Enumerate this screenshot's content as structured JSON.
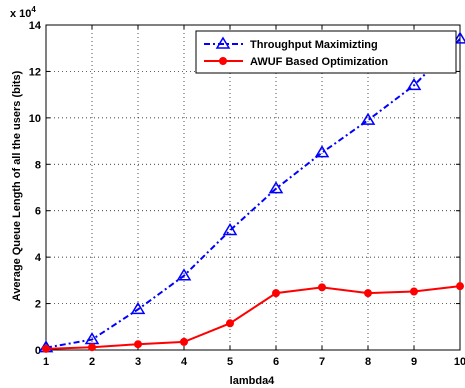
{
  "chart_data": {
    "type": "line",
    "title": "",
    "xlabel": "lambda4",
    "ylabel": "Average Queue Length of all the users (bits)",
    "y_exponent": "x 10",
    "y_exponent_power": "4",
    "x": [
      1,
      2,
      3,
      4,
      5,
      6,
      7,
      8,
      9,
      10
    ],
    "xlim": [
      1,
      10
    ],
    "ylim": [
      0,
      14
    ],
    "x_ticks": [
      "1",
      "2",
      "3",
      "4",
      "5",
      "6",
      "7",
      "8",
      "9",
      "10"
    ],
    "y_ticks": [
      "0",
      "2",
      "4",
      "6",
      "8",
      "10",
      "12",
      "14"
    ],
    "grid": true,
    "legend_position": "top-right",
    "series": [
      {
        "name": "Throughput Maximizting",
        "color": "#0000ff",
        "line_style": "dash-dot",
        "marker": "triangle",
        "values": [
          0.1,
          0.45,
          1.75,
          3.2,
          5.15,
          6.95,
          8.5,
          9.9,
          11.4,
          13.4
        ]
      },
      {
        "name": "AWUF Based Optimization",
        "color": "#ff0000",
        "line_style": "solid",
        "marker": "circle",
        "values": [
          0.05,
          0.12,
          0.25,
          0.35,
          1.15,
          2.45,
          2.7,
          2.45,
          2.52,
          2.75
        ]
      }
    ]
  }
}
